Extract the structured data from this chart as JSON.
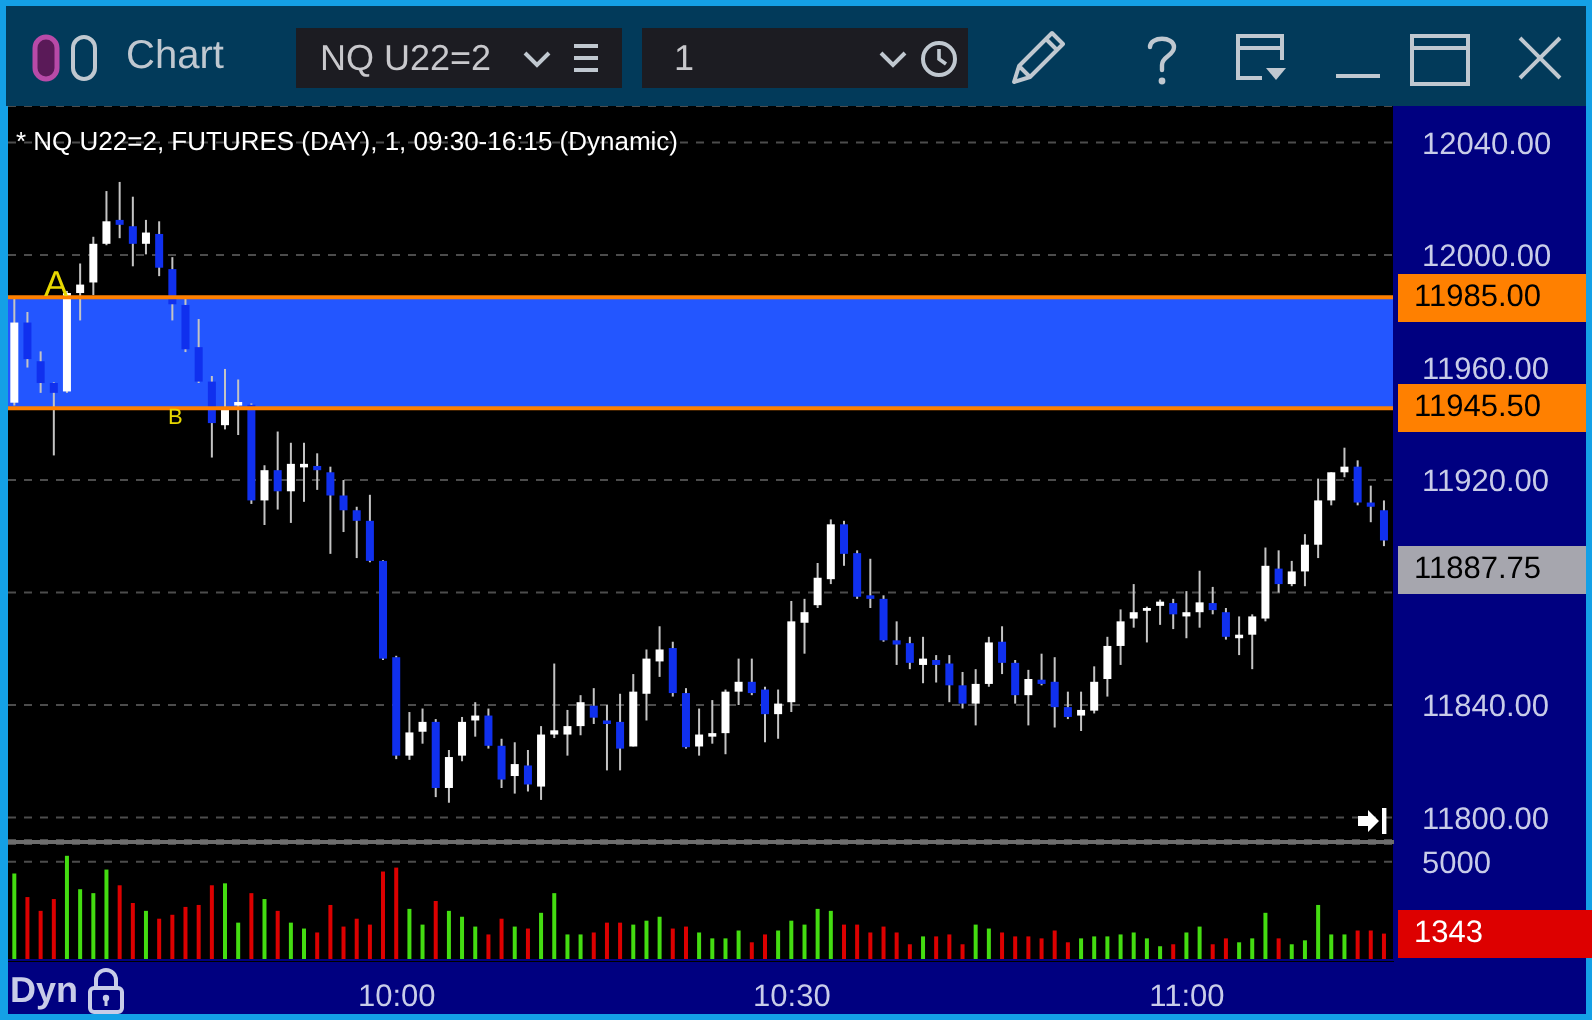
{
  "chart_data": [
    {
      "type": "candlestick",
      "title": "Chart",
      "subtitle": "* NQ U22=2, FUTURES (DAY), 1, 09:30-16:15 (Dynamic)",
      "x": [
        9.5167,
        9.5333,
        9.55,
        9.5667,
        9.5833,
        9.6,
        9.6167,
        9.6333,
        9.65,
        9.6667,
        9.6833,
        9.7,
        9.7167,
        9.7333,
        9.75,
        9.7667,
        9.7833,
        9.8,
        9.8167,
        9.8333,
        9.85,
        9.8667,
        9.8833,
        9.9,
        9.9167,
        9.9333,
        9.95,
        9.9667,
        9.9833,
        10,
        10.0167,
        10.0333,
        10.05,
        10.0667,
        10.0833,
        10.1,
        10.1167,
        10.1333,
        10.15,
        10.1667,
        10.1833,
        10.2,
        10.2167,
        10.2333,
        10.25,
        10.2667,
        10.2833,
        10.3,
        10.3167,
        10.3333,
        10.35,
        10.3667,
        10.3833,
        10.4,
        10.4167,
        10.4333,
        10.45,
        10.4667,
        10.4833,
        10.5,
        10.5167,
        10.5333,
        10.55,
        10.5667,
        10.5833,
        10.6,
        10.6167,
        10.6333,
        10.65,
        10.6667,
        10.6833,
        10.7,
        10.7167,
        10.7333,
        10.75,
        10.7667,
        10.7833,
        10.8,
        10.8167,
        10.8333,
        10.85,
        10.8667,
        10.8833,
        10.9,
        10.9167,
        10.9333,
        10.95,
        10.9667,
        10.9833,
        11,
        11.0167,
        11.0333,
        11.05,
        11.0667,
        11.0833,
        11.1,
        11.1167,
        11.1333,
        11.15,
        11.1667,
        11.1833,
        11.2,
        11.2167,
        11.2333,
        11.25
      ],
      "ohlc": [
        [
          11947.5,
          11985,
          11946.5,
          11976
        ],
        [
          11976,
          11979.75,
          11960,
          11963
        ],
        [
          11962.25,
          11965.75,
          11951,
          11954.5
        ],
        [
          11954.5,
          11954.75,
          11928.75,
          11951
        ],
        [
          11951.5,
          11987.25,
          11951,
          11986.5
        ],
        [
          11986.5,
          11997,
          11976.75,
          11989.5
        ],
        [
          11990.25,
          12006.5,
          11985.75,
          12004
        ],
        [
          12004,
          12022.75,
          12003.5,
          12012
        ],
        [
          12012.5,
          12026,
          12006,
          12010.75
        ],
        [
          12010.25,
          12020.75,
          11996,
          12004
        ],
        [
          12004,
          12012.5,
          12000.25,
          12008
        ],
        [
          12007.5,
          12012,
          11992.5,
          11995.5
        ],
        [
          11995,
          11999.25,
          11976.75,
          11982.5
        ],
        [
          11982.25,
          11985,
          11965.5,
          11966.5
        ],
        [
          11967.25,
          11977.25,
          11954.5,
          11955
        ],
        [
          11955,
          11957,
          11928,
          11940.25
        ],
        [
          11939.5,
          11959.5,
          11938,
          11945.75
        ],
        [
          11946.5,
          11955.75,
          11936,
          11947.75
        ],
        [
          11946.75,
          11947.25,
          11911.5,
          11912.75
        ],
        [
          11912.75,
          11925.25,
          11904,
          11923.5
        ],
        [
          11923.5,
          11937.25,
          11909.5,
          11916
        ],
        [
          11916,
          11933.25,
          11904.75,
          11925.75
        ],
        [
          11924.5,
          11933.25,
          11912.25,
          11925.75
        ],
        [
          11925,
          11929.5,
          11916.5,
          11923.5
        ],
        [
          11922.75,
          11924.75,
          11893.75,
          11914.5
        ],
        [
          11914.5,
          11920,
          11901.5,
          11909.25
        ],
        [
          11909.25,
          11910.5,
          11892.25,
          11905.5
        ],
        [
          11905.5,
          11914.75,
          11890.75,
          11891.25
        ],
        [
          11891.25,
          11891.5,
          11856,
          11856.5
        ],
        [
          11857,
          11857.5,
          11820.75,
          11822
        ],
        [
          11822,
          11837.5,
          11820.5,
          11830.25
        ],
        [
          11830.5,
          11838.75,
          11826.25,
          11834
        ],
        [
          11834,
          11835,
          11807.25,
          11810.5
        ],
        [
          11810.5,
          11824,
          11805.25,
          11821.5
        ],
        [
          11822,
          11835.75,
          11820,
          11834
        ],
        [
          11834.5,
          11841,
          11828.75,
          11836.25
        ],
        [
          11836.25,
          11838.75,
          11824.5,
          11825.5
        ],
        [
          11825.5,
          11828,
          11810.5,
          11813.5
        ],
        [
          11814.75,
          11826.75,
          11808.5,
          11819
        ],
        [
          11818.5,
          11824,
          11809.25,
          11811.75
        ],
        [
          11811,
          11832.5,
          11806.25,
          11829.5
        ],
        [
          11829.5,
          11854.75,
          11828.25,
          11831
        ],
        [
          11829.5,
          11838.25,
          11822,
          11832.5
        ],
        [
          11832.5,
          11843.5,
          11829.25,
          11841
        ],
        [
          11839.75,
          11846,
          11833.25,
          11835.5
        ],
        [
          11834.5,
          11840,
          11816.75,
          11833.25
        ],
        [
          11834,
          11844,
          11816.75,
          11824.5
        ],
        [
          11825.25,
          11851,
          11825.25,
          11844.75
        ],
        [
          11844,
          11859.75,
          11834.5,
          11856.5
        ],
        [
          11855.5,
          11868,
          11850,
          11859.75
        ],
        [
          11860.25,
          11862.5,
          11843,
          11844.25
        ],
        [
          11844.25,
          11846,
          11824.5,
          11825
        ],
        [
          11825.25,
          11838.75,
          11822,
          11829.5
        ],
        [
          11828.75,
          11841.75,
          11826.25,
          11830
        ],
        [
          11830,
          11845.5,
          11822.5,
          11844.75
        ],
        [
          11844.75,
          11856.5,
          11840,
          11848.25
        ],
        [
          11848.25,
          11856.5,
          11843.5,
          11844.25
        ],
        [
          11845.5,
          11846.5,
          11826.75,
          11836.75
        ],
        [
          11836.75,
          11845.5,
          11828,
          11840.5
        ],
        [
          11841,
          11877,
          11837.5,
          11869.75
        ],
        [
          11869.25,
          11877.75,
          11858.25,
          11873
        ],
        [
          11875.5,
          11890.5,
          11874.5,
          11885.25
        ],
        [
          11884.75,
          11906,
          11883,
          11904.25
        ],
        [
          11904.25,
          11905.5,
          11889.5,
          11893.75
        ],
        [
          11894,
          11895,
          11877.75,
          11878.5
        ],
        [
          11879,
          11892,
          11874.5,
          11877.75
        ],
        [
          11877.75,
          11879,
          11862.5,
          11863
        ],
        [
          11863,
          11869.75,
          11854.25,
          11861.5
        ],
        [
          11862,
          11864.25,
          11852.75,
          11855
        ],
        [
          11854.25,
          11864.25,
          11847.75,
          11856.5
        ],
        [
          11856,
          11857.75,
          11848,
          11854.25
        ],
        [
          11854.75,
          11857.75,
          11841,
          11847
        ],
        [
          11847,
          11851.75,
          11838.75,
          11840.5
        ],
        [
          11840.5,
          11852.75,
          11832.75,
          11847.5
        ],
        [
          11847.5,
          11864.25,
          11846.5,
          11862.25
        ],
        [
          11862.5,
          11868,
          11851,
          11855
        ],
        [
          11855,
          11856,
          11840.5,
          11843.5
        ],
        [
          11843.5,
          11852.5,
          11832.75,
          11849.25
        ],
        [
          11849,
          11858.25,
          11847,
          11847.5
        ],
        [
          11848.25,
          11857,
          11832,
          11839.25
        ],
        [
          11839.25,
          11844.75,
          11835,
          11835.75
        ],
        [
          11836.25,
          11844.75,
          11830.75,
          11838.25
        ],
        [
          11838,
          11853.75,
          11837,
          11848.25
        ],
        [
          11849.25,
          11864.25,
          11843,
          11861
        ],
        [
          11861,
          11874,
          11854.25,
          11869.75
        ],
        [
          11870.75,
          11883,
          11867.5,
          11873
        ],
        [
          11873.5,
          11875,
          11862.25,
          11874.5
        ],
        [
          11875.25,
          11877.5,
          11868.5,
          11876.75
        ],
        [
          11876.25,
          11877.75,
          11867,
          11872.25
        ],
        [
          11871.5,
          11880.5,
          11863.75,
          11873
        ],
        [
          11873,
          11887.75,
          11867.5,
          11876.5
        ],
        [
          11876.25,
          11882,
          11872.25,
          11873.75
        ],
        [
          11873,
          11874.5,
          11863.25,
          11864.25
        ],
        [
          11863.75,
          11871.5,
          11857.75,
          11865
        ],
        [
          11865,
          11872.25,
          11852.75,
          11871.5
        ],
        [
          11870.75,
          11896,
          11869.75,
          11889.5
        ],
        [
          11888.5,
          11895,
          11880,
          11883
        ],
        [
          11883,
          11891.25,
          11882.25,
          11887.5
        ],
        [
          11887.5,
          11900.75,
          11882.25,
          11897
        ],
        [
          11897,
          11920.5,
          11892.25,
          11912.75
        ],
        [
          11912.75,
          11922.75,
          11911,
          11922.75
        ],
        [
          11922.75,
          11931.5,
          11921,
          11924.75
        ],
        [
          11924.75,
          11927,
          11911,
          11912
        ],
        [
          11912,
          11918,
          11905,
          11910.5
        ],
        [
          11909.25,
          11912.75,
          11896.5,
          11898.5
        ]
      ],
      "colors": [
        "#ffffff",
        "#1030ee",
        "#1030ee",
        "#1030ee",
        "#ffffff",
        "#ffffff",
        "#ffffff",
        "#ffffff",
        "#1030ee",
        "#1030ee",
        "#ffffff",
        "#1030ee",
        "#1030ee",
        "#1030ee",
        "#1030ee",
        "#1030ee",
        "#ffffff",
        "#ffffff",
        "#1030ee",
        "#ffffff",
        "#1030ee",
        "#ffffff",
        "#ffffff",
        "#1030ee",
        "#1030ee",
        "#1030ee",
        "#1030ee",
        "#1030ee",
        "#1030ee",
        "#1030ee",
        "#ffffff",
        "#ffffff",
        "#1030ee",
        "#ffffff",
        "#ffffff",
        "#ffffff",
        "#1030ee",
        "#1030ee",
        "#ffffff",
        "#1030ee",
        "#ffffff",
        "#ffffff",
        "#ffffff",
        "#ffffff",
        "#1030ee",
        "#1030ee",
        "#1030ee",
        "#ffffff",
        "#ffffff",
        "#ffffff",
        "#1030ee",
        "#1030ee",
        "#ffffff",
        "#ffffff",
        "#ffffff",
        "#ffffff",
        "#1030ee",
        "#1030ee",
        "#ffffff",
        "#ffffff",
        "#ffffff",
        "#ffffff",
        "#ffffff",
        "#1030ee",
        "#1030ee",
        "#1030ee",
        "#1030ee",
        "#1030ee",
        "#1030ee",
        "#ffffff",
        "#1030ee",
        "#1030ee",
        "#1030ee",
        "#ffffff",
        "#ffffff",
        "#1030ee",
        "#1030ee",
        "#ffffff",
        "#1030ee",
        "#1030ee",
        "#1030ee",
        "#ffffff",
        "#ffffff",
        "#ffffff",
        "#ffffff",
        "#ffffff",
        "#ffffff",
        "#ffffff",
        "#1030ee",
        "#ffffff",
        "#ffffff",
        "#1030ee",
        "#1030ee",
        "#ffffff",
        "#ffffff",
        "#ffffff",
        "#1030ee",
        "#ffffff",
        "#ffffff",
        "#ffffff",
        "#ffffff",
        "#ffffff",
        "#1030ee",
        "#1030ee",
        "#1030ee"
      ],
      "xlim": [
        9.508,
        11.262
      ],
      "ylim": [
        11792,
        12053
      ],
      "yticks": [
        {
          "value": 11800,
          "label": "11800.00"
        },
        {
          "value": 11840,
          "label": "11840.00"
        },
        {
          "value": 11880,
          "label": null
        },
        {
          "value": 11920,
          "label": "11920.00"
        },
        {
          "value": 11960,
          "label": "11960.00"
        },
        {
          "value": 12000,
          "label": "12000.00"
        },
        {
          "value": 12040,
          "label": "12040.00"
        }
      ],
      "tick_labels": "y",
      "grid": "y",
      "bands": [
        {
          "axis": "y",
          "from": 11945.5,
          "to": 11985,
          "color": "#2356ff"
        }
      ],
      "ref_lines": [
        {
          "axis": "y",
          "value": 11985,
          "label": "11985.00",
          "color": "#ff8000",
          "line_style": "solid"
        },
        {
          "axis": "y",
          "value": 11945.5,
          "label": "11945.50",
          "color": "#ff8000",
          "line_style": "solid"
        }
      ],
      "annotations": [
        "A",
        "B",
        "11887.75",
        "NQ U22=2",
        "1"
      ]
    },
    {
      "type": "bar",
      "x": [
        9.5167,
        9.5333,
        9.55,
        9.5667,
        9.5833,
        9.6,
        9.6167,
        9.6333,
        9.65,
        9.6667,
        9.6833,
        9.7,
        9.7167,
        9.7333,
        9.75,
        9.7667,
        9.7833,
        9.8,
        9.8167,
        9.8333,
        9.85,
        9.8667,
        9.8833,
        9.9,
        9.9167,
        9.9333,
        9.95,
        9.9667,
        9.9833,
        10,
        10.0167,
        10.0333,
        10.05,
        10.0667,
        10.0833,
        10.1,
        10.1167,
        10.1333,
        10.15,
        10.1667,
        10.1833,
        10.2,
        10.2167,
        10.2333,
        10.25,
        10.2667,
        10.2833,
        10.3,
        10.3167,
        10.3333,
        10.35,
        10.3667,
        10.3833,
        10.4,
        10.4167,
        10.4333,
        10.45,
        10.4667,
        10.4833,
        10.5,
        10.5167,
        10.5333,
        10.55,
        10.5667,
        10.5833,
        10.6,
        10.6167,
        10.6333,
        10.65,
        10.6667,
        10.6833,
        10.7,
        10.7167,
        10.7333,
        10.75,
        10.7667,
        10.7833,
        10.8,
        10.8167,
        10.8333,
        10.85,
        10.8667,
        10.8833,
        10.9,
        10.9167,
        10.9333,
        10.95,
        10.9667,
        10.9833,
        11,
        11.0167,
        11.0333,
        11.05,
        11.0667,
        11.0833,
        11.1,
        11.1167,
        11.1333,
        11.15,
        11.1667,
        11.1833,
        11.2,
        11.2167,
        11.2333,
        11.25
      ],
      "values": [
        4400,
        3200,
        2500,
        3100,
        5300,
        3600,
        3400,
        4600,
        3800,
        2900,
        2500,
        2100,
        2300,
        2700,
        2800,
        3800,
        3900,
        1900,
        3400,
        3100,
        2500,
        1900,
        1600,
        1400,
        2800,
        1700,
        2100,
        1800,
        4500,
        4700,
        2600,
        1800,
        3000,
        2500,
        2200,
        1700,
        1300,
        2100,
        1700,
        1600,
        2400,
        3400,
        1300,
        1300,
        1400,
        1900,
        1900,
        1800,
        2000,
        2200,
        1600,
        1700,
        1400,
        1100,
        1100,
        1500,
        900,
        1300,
        1500,
        2000,
        1800,
        2600,
        2500,
        1800,
        1800,
        1400,
        1700,
        1400,
        800,
        1200,
        1200,
        1300,
        800,
        1800,
        1600,
        1400,
        1200,
        1200,
        1100,
        1500,
        900,
        1100,
        1200,
        1200,
        1300,
        1400,
        1100,
        700,
        800,
        1400,
        1700,
        800,
        1100,
        900,
        1100,
        2400,
        1100,
        800,
        1000,
        2800,
        1300,
        1300,
        1500,
        1500,
        1343
      ],
      "colors": [
        "#44dd11",
        "#dd0000",
        "#dd0000",
        "#dd0000",
        "#44dd11",
        "#44dd11",
        "#44dd11",
        "#44dd11",
        "#dd0000",
        "#dd0000",
        "#44dd11",
        "#dd0000",
        "#dd0000",
        "#dd0000",
        "#dd0000",
        "#dd0000",
        "#44dd11",
        "#44dd11",
        "#dd0000",
        "#44dd11",
        "#dd0000",
        "#44dd11",
        "#44dd11",
        "#dd0000",
        "#dd0000",
        "#dd0000",
        "#dd0000",
        "#dd0000",
        "#dd0000",
        "#dd0000",
        "#44dd11",
        "#44dd11",
        "#dd0000",
        "#44dd11",
        "#44dd11",
        "#44dd11",
        "#dd0000",
        "#dd0000",
        "#44dd11",
        "#dd0000",
        "#44dd11",
        "#44dd11",
        "#44dd11",
        "#44dd11",
        "#dd0000",
        "#dd0000",
        "#dd0000",
        "#44dd11",
        "#44dd11",
        "#44dd11",
        "#dd0000",
        "#dd0000",
        "#44dd11",
        "#44dd11",
        "#44dd11",
        "#44dd11",
        "#dd0000",
        "#dd0000",
        "#44dd11",
        "#44dd11",
        "#44dd11",
        "#44dd11",
        "#44dd11",
        "#dd0000",
        "#dd0000",
        "#dd0000",
        "#dd0000",
        "#dd0000",
        "#dd0000",
        "#44dd11",
        "#dd0000",
        "#dd0000",
        "#dd0000",
        "#44dd11",
        "#44dd11",
        "#dd0000",
        "#dd0000",
        "#dd0000",
        "#dd0000",
        "#dd0000",
        "#dd0000",
        "#44dd11",
        "#44dd11",
        "#44dd11",
        "#44dd11",
        "#44dd11",
        "#44dd11",
        "#44dd11",
        "#dd0000",
        "#44dd11",
        "#44dd11",
        "#dd0000",
        "#dd0000",
        "#44dd11",
        "#44dd11",
        "#44dd11",
        "#dd0000",
        "#44dd11",
        "#44dd11",
        "#44dd11",
        "#44dd11",
        "#44dd11",
        "#dd0000",
        "#dd0000",
        "#dd0000"
      ],
      "xlim": [
        9.508,
        11.262
      ],
      "xticks": [
        {
          "value": 10,
          "label": "10:00"
        },
        {
          "value": 10.5,
          "label": "10:30"
        },
        {
          "value": 11,
          "label": "11:00"
        }
      ],
      "ylim": [
        0,
        5900
      ],
      "yticks": [
        {
          "value": 0,
          "label": null
        },
        5000
      ],
      "grid": "y",
      "annotations": [
        "Dyn",
        "1343"
      ]
    }
  ]
}
